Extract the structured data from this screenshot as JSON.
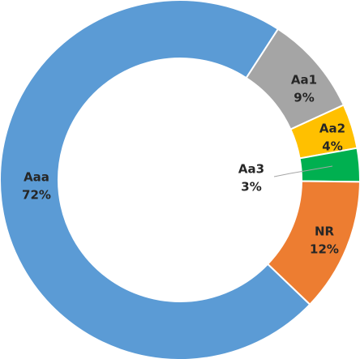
{
  "chart_data": {
    "type": "donut",
    "categories": [
      "Aaa",
      "Aa1",
      "Aa2",
      "Aa3",
      "NR"
    ],
    "values": [
      72,
      9,
      4,
      3,
      12
    ],
    "value_labels": [
      "72%",
      "9%",
      "4%",
      "3%",
      "12%"
    ],
    "colors": [
      "#5b9bd5",
      "#a5a5a5",
      "#ffc000",
      "#00b050",
      "#ed7d31"
    ]
  }
}
